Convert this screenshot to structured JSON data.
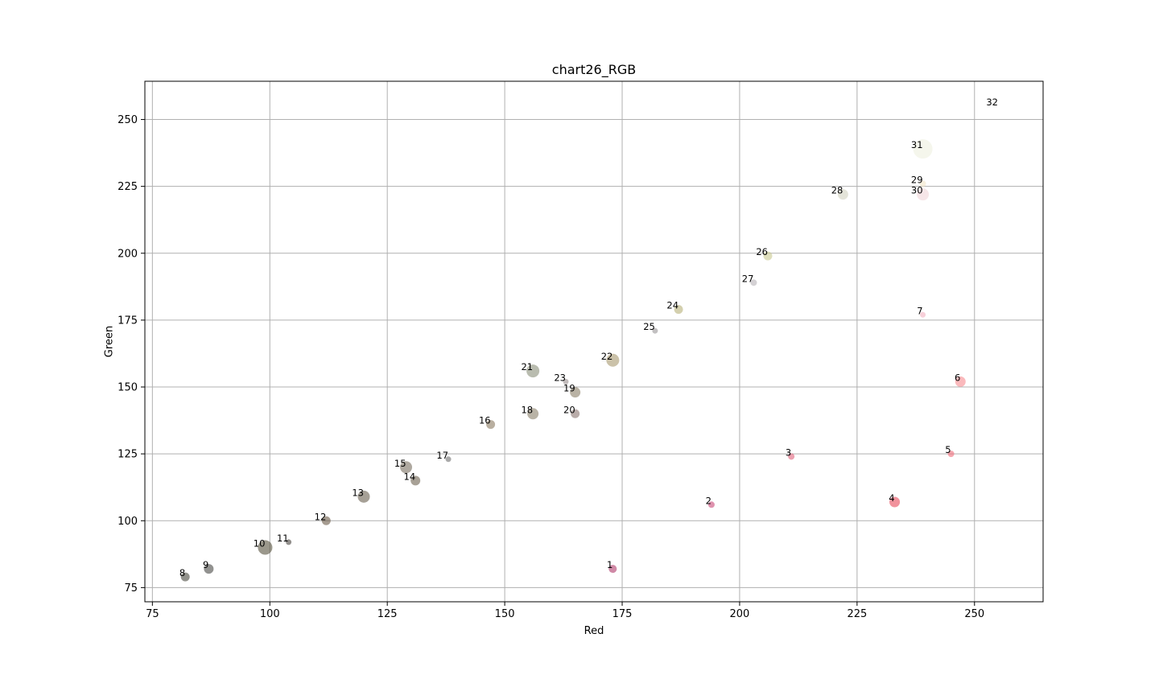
{
  "chart_data": {
    "type": "scatter",
    "title": "chart26_RGB",
    "xlabel": "Red",
    "ylabel": "Green",
    "xlim": [
      73.4,
      264.6
    ],
    "ylim": [
      69.7,
      264.3
    ],
    "xticks": [
      75,
      100,
      125,
      150,
      175,
      200,
      225,
      250
    ],
    "yticks": [
      75,
      100,
      125,
      150,
      175,
      200,
      225,
      250
    ],
    "grid": true,
    "point_opacity": 0.6,
    "points": [
      {
        "label": "1",
        "x": 173,
        "y": 82,
        "size": 10,
        "color": "#b03a6a"
      },
      {
        "label": "2",
        "x": 194,
        "y": 106,
        "size": 8,
        "color": "#c94a78"
      },
      {
        "label": "3",
        "x": 211,
        "y": 124,
        "size": 8,
        "color": "#e0607a"
      },
      {
        "label": "4",
        "x": 233,
        "y": 107,
        "size": 13,
        "color": "#e84a5a"
      },
      {
        "label": "5",
        "x": 245,
        "y": 125,
        "size": 8,
        "color": "#f06a78"
      },
      {
        "label": "6",
        "x": 247,
        "y": 152,
        "size": 13,
        "color": "#f68a90"
      },
      {
        "label": "7",
        "x": 239,
        "y": 177,
        "size": 7,
        "color": "#f2b0c0"
      },
      {
        "label": "8",
        "x": 82,
        "y": 79,
        "size": 11,
        "color": "#4a4a40"
      },
      {
        "label": "9",
        "x": 87,
        "y": 82,
        "size": 12,
        "color": "#4a4a46"
      },
      {
        "label": "10",
        "x": 99,
        "y": 90,
        "size": 18,
        "color": "#585440"
      },
      {
        "label": "11",
        "x": 104,
        "y": 92,
        "size": 7,
        "color": "#4a4440"
      },
      {
        "label": "12",
        "x": 112,
        "y": 100,
        "size": 11,
        "color": "#6a5a48"
      },
      {
        "label": "13",
        "x": 120,
        "y": 109,
        "size": 15,
        "color": "#6a6050"
      },
      {
        "label": "14",
        "x": 131,
        "y": 115,
        "size": 12,
        "color": "#6e6250"
      },
      {
        "label": "15",
        "x": 129,
        "y": 120,
        "size": 15,
        "color": "#7a7060"
      },
      {
        "label": "16",
        "x": 147,
        "y": 136,
        "size": 11,
        "color": "#8a7a60"
      },
      {
        "label": "17",
        "x": 138,
        "y": 123,
        "size": 7,
        "color": "#707070"
      },
      {
        "label": "18",
        "x": 156,
        "y": 140,
        "size": 14,
        "color": "#8a806a"
      },
      {
        "label": "19",
        "x": 165,
        "y": 148,
        "size": 13,
        "color": "#8a7e68"
      },
      {
        "label": "20",
        "x": 165,
        "y": 140,
        "size": 11,
        "color": "#8a7470"
      },
      {
        "label": "21",
        "x": 156,
        "y": 156,
        "size": 16,
        "color": "#8a907a"
      },
      {
        "label": "22",
        "x": 173,
        "y": 160,
        "size": 16,
        "color": "#a89a70"
      },
      {
        "label": "23",
        "x": 163,
        "y": 152,
        "size": 7,
        "color": "#9a9090"
      },
      {
        "label": "24",
        "x": 187,
        "y": 179,
        "size": 11,
        "color": "#b8b078"
      },
      {
        "label": "25",
        "x": 182,
        "y": 171,
        "size": 7,
        "color": "#9a9698"
      },
      {
        "label": "26",
        "x": 206,
        "y": 199,
        "size": 11,
        "color": "#c8c890"
      },
      {
        "label": "27",
        "x": 203,
        "y": 189,
        "size": 8,
        "color": "#b8b2b8"
      },
      {
        "label": "28",
        "x": 222,
        "y": 222,
        "size": 13,
        "color": "#d2d2c0"
      },
      {
        "label": "29",
        "x": 239,
        "y": 226,
        "size": 8,
        "color": "#f2e6c8"
      },
      {
        "label": "30",
        "x": 239,
        "y": 222,
        "size": 15,
        "color": "#f0d6d8"
      },
      {
        "label": "31",
        "x": 239,
        "y": 239,
        "size": 24,
        "color": "#eef0e0"
      },
      {
        "label": "32",
        "x": 255,
        "y": 255,
        "size": 8,
        "color": "#ffffff"
      }
    ]
  }
}
